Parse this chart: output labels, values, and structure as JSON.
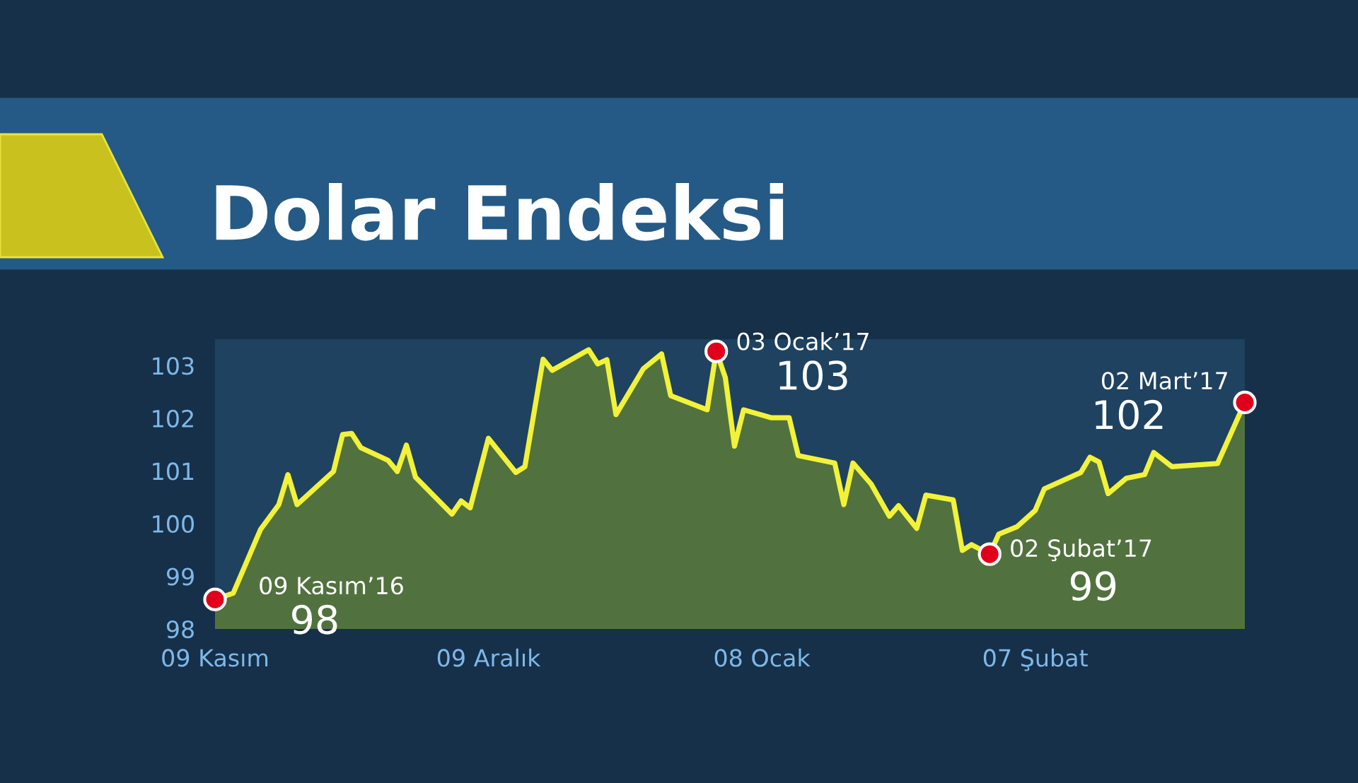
{
  "chart_data": {
    "type": "area",
    "title": "Dolar Endeksi",
    "series": [
      {
        "color": "#f2f23a",
        "x": [
          "2016-11-09",
          "2016-11-11",
          "2016-11-14",
          "2016-11-16",
          "2016-11-17",
          "2016-11-18",
          "2016-11-22",
          "2016-11-23",
          "2016-11-24",
          "2016-11-25",
          "2016-11-28",
          "2016-11-29",
          "2016-11-30",
          "2016-12-01",
          "2016-12-05",
          "2016-12-06",
          "2016-12-07",
          "2016-12-09",
          "2016-12-12",
          "2016-12-13",
          "2016-12-15",
          "2016-12-16",
          "2016-12-20",
          "2016-12-21",
          "2016-12-22",
          "2016-12-23",
          "2016-12-26",
          "2016-12-28",
          "2016-12-29",
          "2017-01-02",
          "2017-01-03",
          "2017-01-04",
          "2017-01-05",
          "2017-01-06",
          "2017-01-09",
          "2017-01-11",
          "2017-01-12",
          "2017-01-16",
          "2017-01-17",
          "2017-01-18",
          "2017-01-20",
          "2017-01-22",
          "2017-01-23",
          "2017-01-25",
          "2017-01-26",
          "2017-01-29",
          "2017-01-30",
          "2017-01-31",
          "2017-02-02",
          "2017-02-03",
          "2017-02-05",
          "2017-02-07",
          "2017-02-08",
          "2017-02-12",
          "2017-02-13",
          "2017-02-14",
          "2017-02-15",
          "2017-02-17",
          "2017-02-19",
          "2017-02-20",
          "2017-02-22",
          "2017-02-27",
          "2017-03-02"
        ],
        "values": [
          98.56,
          98.68,
          99.89,
          100.36,
          100.93,
          100.36,
          100.99,
          101.69,
          101.71,
          101.44,
          101.2,
          100.99,
          101.49,
          100.88,
          100.18,
          100.43,
          100.3,
          101.62,
          100.97,
          101.08,
          103.12,
          102.91,
          103.3,
          103.03,
          103.11,
          102.07,
          102.94,
          103.22,
          102.43,
          102.16,
          103.27,
          102.77,
          101.47,
          102.16,
          102.01,
          102.01,
          101.29,
          101.15,
          100.36,
          101.15,
          100.75,
          100.14,
          100.34,
          99.91,
          100.54,
          100.45,
          99.49,
          99.6,
          99.42,
          99.8,
          99.94,
          100.25,
          100.66,
          100.97,
          101.26,
          101.17,
          100.57,
          100.86,
          100.93,
          101.35,
          101.08,
          101.14,
          102.3
        ]
      },
      {
        "type": "scatter",
        "marker": "circle",
        "color": "#e0001b",
        "x": [
          "2016-11-09",
          "2017-01-03",
          "2017-02-02",
          "2017-03-02"
        ],
        "values": [
          98.56,
          103.27,
          99.42,
          102.3
        ]
      }
    ],
    "annotations": [
      {
        "text": "09 Kasım’16",
        "x": "2016-11-09",
        "y": 98.56
      },
      {
        "text": "98",
        "x": "2016-11-09",
        "y": 98.56
      },
      {
        "text": "03 Ocak’17",
        "x": "2017-01-03",
        "y": 103.27
      },
      {
        "text": "103",
        "x": "2017-01-03",
        "y": 103.27
      },
      {
        "text": "02 Şubat’17",
        "x": "2017-02-02",
        "y": 99.42
      },
      {
        "text": "99",
        "x": "2017-02-02",
        "y": 99.42
      },
      {
        "text": "02 Mart’17",
        "x": "2017-03-02",
        "y": 102.3
      },
      {
        "text": "102",
        "x": "2017-03-02",
        "y": 102.3
      }
    ],
    "xlim": [
      "2016-11-09",
      "2017-03-02"
    ],
    "xticks": [
      {
        "value": "2016-11-09",
        "label": "09 Kasım"
      },
      {
        "value": "2016-12-09",
        "label": "09 Aralık"
      },
      {
        "value": "2017-01-08",
        "label": "08 Ocak"
      },
      {
        "value": "2017-02-07",
        "label": "07 Şubat"
      }
    ],
    "ylim": [
      98,
      103.5
    ],
    "yticks": [
      98,
      99,
      100,
      101,
      102,
      103
    ],
    "grid": false,
    "line_style": "solid"
  }
}
